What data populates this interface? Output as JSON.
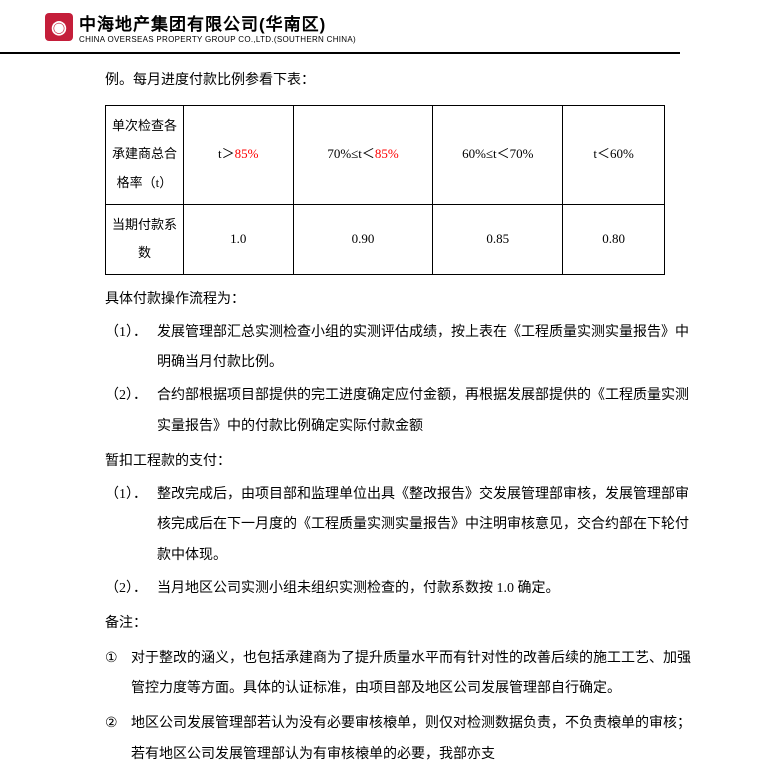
{
  "header": {
    "logo_text": "◉",
    "company_cn": "中海地产集团有限公司(华南区)",
    "company_en": "CHINA OVERSEAS PROPERTY GROUP CO.,LTD.(SOUTHERN CHINA)"
  },
  "intro": "例。每月进度付款比例参看下表：",
  "table": {
    "row1_col1": "单次检查各承建商总合格率（t）",
    "row1_col2_a": "t＞",
    "row1_col2_b": "85%",
    "row1_col3_a": "70%≤t＜",
    "row1_col3_b": "85%",
    "row1_col4": "60%≤t＜70%",
    "row1_col5": "t＜60%",
    "row2_col1": "当期付款系数",
    "row2_col2": "1.0",
    "row2_col3": "0.90",
    "row2_col4": "0.85",
    "row2_col5": "0.80"
  },
  "section1_title": "具体付款操作流程为：",
  "s1_item1_num": "（1）．",
  "s1_item1_text": "发展管理部汇总实测检查小组的实测评估成绩，按上表在《工程质量实测实量报告》中明确当月付款比例。",
  "s1_item2_num": "（2）．",
  "s1_item2_text": "合约部根据项目部提供的完工进度确定应付金额，再根据发展部提供的《工程质量实测实量报告》中的付款比例确定实际付款金额",
  "section2_title": "暂扣工程款的支付：",
  "s2_item1_num": "（1）．",
  "s2_item1_text": "整改完成后，由项目部和监理单位出具《整改报告》交发展管理部审核，发展管理部审核完成后在下一月度的《工程质量实测实量报告》中注明审核意见，交合约部在下轮付款中体现。",
  "s2_item2_num": "（2）．",
  "s2_item2_text": "当月地区公司实测小组未组织实测检查的，付款系数按 1.0 确定。",
  "notes_title": "备注：",
  "note1_num": "①",
  "note1_text": "对于整改的涵义，也包括承建商为了提升质量水平而有针对性的改善后续的施工工艺、加强管控力度等方面。具体的认证标准，由项目部及地区公司发展管理部自行确定。",
  "note2_num": "②",
  "note2_text": "地区公司发展管理部若认为没有必要审核榱单，则仅对检测数据负责，不负责榱单的审核；若有地区公司发展管理部认为有审核榱单的必要，我部亦支"
}
